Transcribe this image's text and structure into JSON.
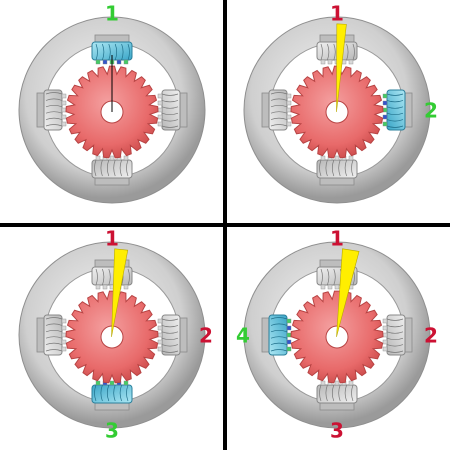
{
  "colors": {
    "energized": "#33cc33",
    "stepped": "#cc1133",
    "pointer": "#ffee00",
    "rotor": "#ee6666",
    "stator": "#cfcfcf",
    "coil_active": "#44bbdd",
    "divider": "#000000"
  },
  "panels": [
    {
      "step": 1,
      "active_coil": "top",
      "pointer_angle_deg": 0,
      "labels": [
        {
          "position": "top",
          "text": "1",
          "color_key": "energized"
        }
      ]
    },
    {
      "step": 2,
      "active_coil": "right",
      "pointer_angle_deg": 3,
      "labels": [
        {
          "position": "top",
          "text": "1",
          "color_key": "stepped"
        },
        {
          "position": "right",
          "text": "2",
          "color_key": "energized"
        }
      ]
    },
    {
      "step": 3,
      "active_coil": "bottom",
      "pointer_angle_deg": 6,
      "labels": [
        {
          "position": "top",
          "text": "1",
          "color_key": "stepped"
        },
        {
          "position": "right",
          "text": "2",
          "color_key": "stepped"
        },
        {
          "position": "bottom",
          "text": "3",
          "color_key": "energized"
        }
      ]
    },
    {
      "step": 4,
      "active_coil": "left",
      "pointer_angle_deg": 9,
      "labels": [
        {
          "position": "top",
          "text": "1",
          "color_key": "stepped"
        },
        {
          "position": "right",
          "text": "2",
          "color_key": "stepped"
        },
        {
          "position": "bottom",
          "text": "3",
          "color_key": "stepped"
        },
        {
          "position": "left",
          "text": "4",
          "color_key": "energized"
        }
      ]
    }
  ]
}
